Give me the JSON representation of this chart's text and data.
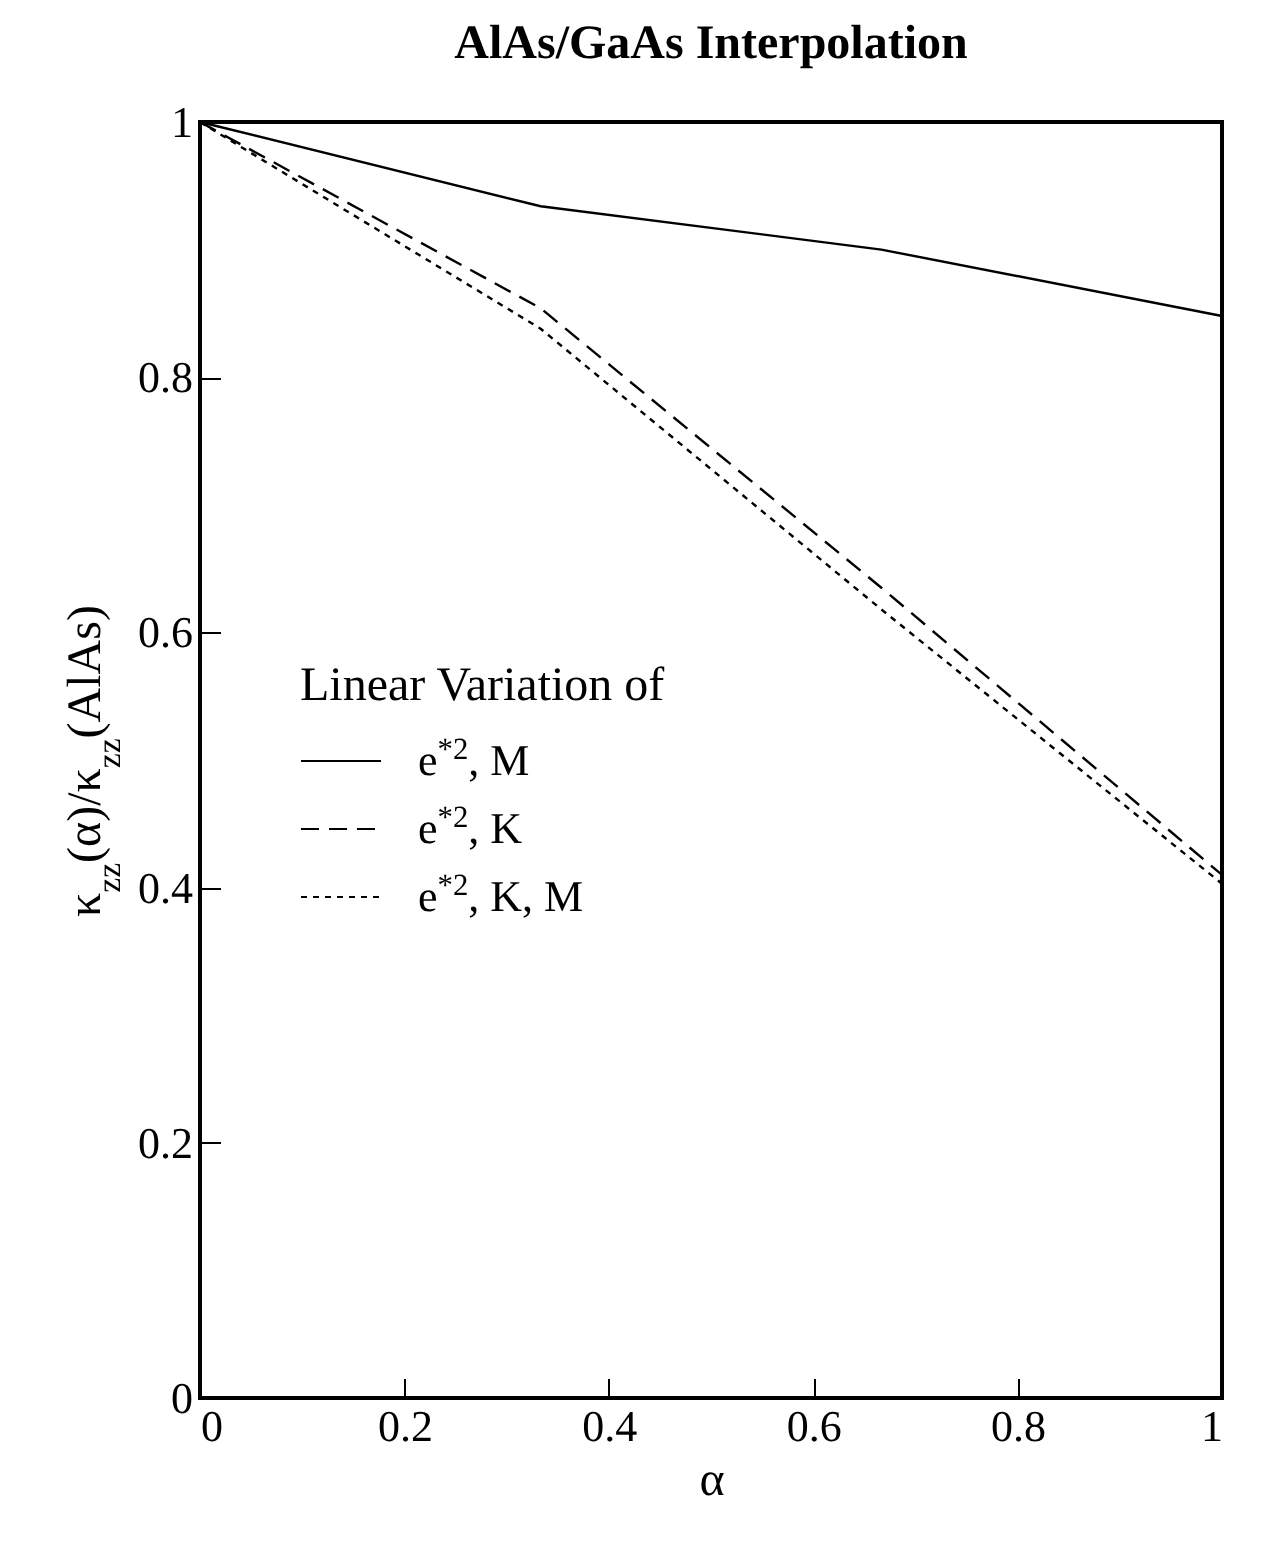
{
  "chart_data": {
    "type": "line",
    "title": "AlAs/GaAs Interpolation",
    "xlabel": "α",
    "ylabel": "κ$_{zz}$(α)/κ$_{zz}$(AlAs)",
    "legend_title": "Linear Variation of",
    "legend": "left",
    "grid": false,
    "marker": "none",
    "x": [
      0,
      0.3333,
      0.6667,
      1
    ],
    "xlim": [
      0,
      1
    ],
    "xticks": [
      0,
      0.2,
      0.4,
      0.6,
      0.8,
      1
    ],
    "ylim": [
      0,
      1
    ],
    "yticks": [
      0,
      0.2,
      0.4,
      0.6,
      0.8,
      1
    ],
    "series": [
      {
        "name": "e$^{*2}$, M",
        "color": "#000000",
        "line_style": "solid",
        "values": [
          1,
          0.934,
          0.9,
          0.848
        ]
      },
      {
        "name": "e$^{*2}$, K",
        "color": "#000000",
        "line_style": "dashed",
        "values": [
          1,
          0.854,
          0.635,
          0.41
        ]
      },
      {
        "name": "e$^{*2}$, K, M",
        "color": "#000000",
        "line_style": "dotted",
        "values": [
          1,
          0.838,
          0.618,
          0.403
        ]
      }
    ]
  }
}
